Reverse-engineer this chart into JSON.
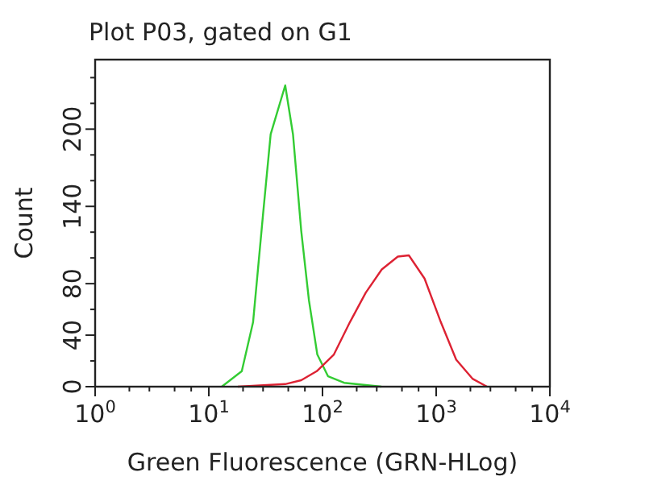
{
  "chart_data": {
    "type": "line",
    "title": "Plot P03, gated on G1",
    "xlabel": "Green Fluorescence (GRN-HLog)",
    "ylabel": "Count",
    "log": "x",
    "grid": false,
    "marker": "none",
    "line_style": "solid",
    "xlim": [
      1,
      10000
    ],
    "ylim": [
      0,
      254
    ],
    "xticks": [
      {
        "value": 1,
        "label": "10$^{0}$"
      },
      {
        "value": 10,
        "label": "10$^{1}$"
      },
      {
        "value": 100,
        "label": "10$^{2}$"
      },
      {
        "value": 1000,
        "label": "10$^{3}$"
      },
      {
        "value": 10000,
        "label": "10$^{4}$"
      },
      {
        "value": 2,
        "label": null
      },
      {
        "value": 3,
        "label": null
      },
      {
        "value": 5,
        "label": null
      },
      {
        "value": 7,
        "label": null
      },
      {
        "value": 20,
        "label": null
      },
      {
        "value": 30,
        "label": null
      },
      {
        "value": 50,
        "label": null
      },
      {
        "value": 70,
        "label": null
      },
      {
        "value": 200,
        "label": null
      },
      {
        "value": 300,
        "label": null
      },
      {
        "value": 500,
        "label": null
      },
      {
        "value": 700,
        "label": null
      },
      {
        "value": 2000,
        "label": null
      },
      {
        "value": 3000,
        "label": null
      },
      {
        "value": 5000,
        "label": null
      },
      {
        "value": 7000,
        "label": null
      }
    ],
    "yticks": [
      0,
      40,
      80,
      140,
      200,
      {
        "value": 20,
        "label": null
      },
      {
        "value": 60,
        "label": null
      },
      {
        "value": 100,
        "label": null
      },
      {
        "value": 120,
        "label": null
      },
      {
        "value": 160,
        "label": null
      },
      {
        "value": 180,
        "label": null
      },
      {
        "value": 220,
        "label": null
      },
      {
        "value": 240,
        "label": null
      }
    ],
    "series": [
      {
        "color": "#33cc33",
        "x": [
          13,
          19.5,
          24.5,
          30,
          35,
          47,
          55,
          65,
          76,
          90,
          112,
          155,
          330
        ],
        "values": [
          0,
          12,
          50,
          134,
          196,
          234,
          196,
          121,
          67,
          25,
          8,
          3,
          0
        ]
      },
      {
        "color": "#dd2233",
        "x": [
          18,
          47,
          65,
          89,
          126,
          174,
          240,
          332,
          460,
          575,
          790,
          1100,
          1500,
          2100,
          2800
        ],
        "values": [
          0,
          2,
          5,
          12,
          25,
          50,
          73,
          91,
          101,
          102,
          84,
          50,
          21,
          6,
          0
        ]
      }
    ]
  }
}
